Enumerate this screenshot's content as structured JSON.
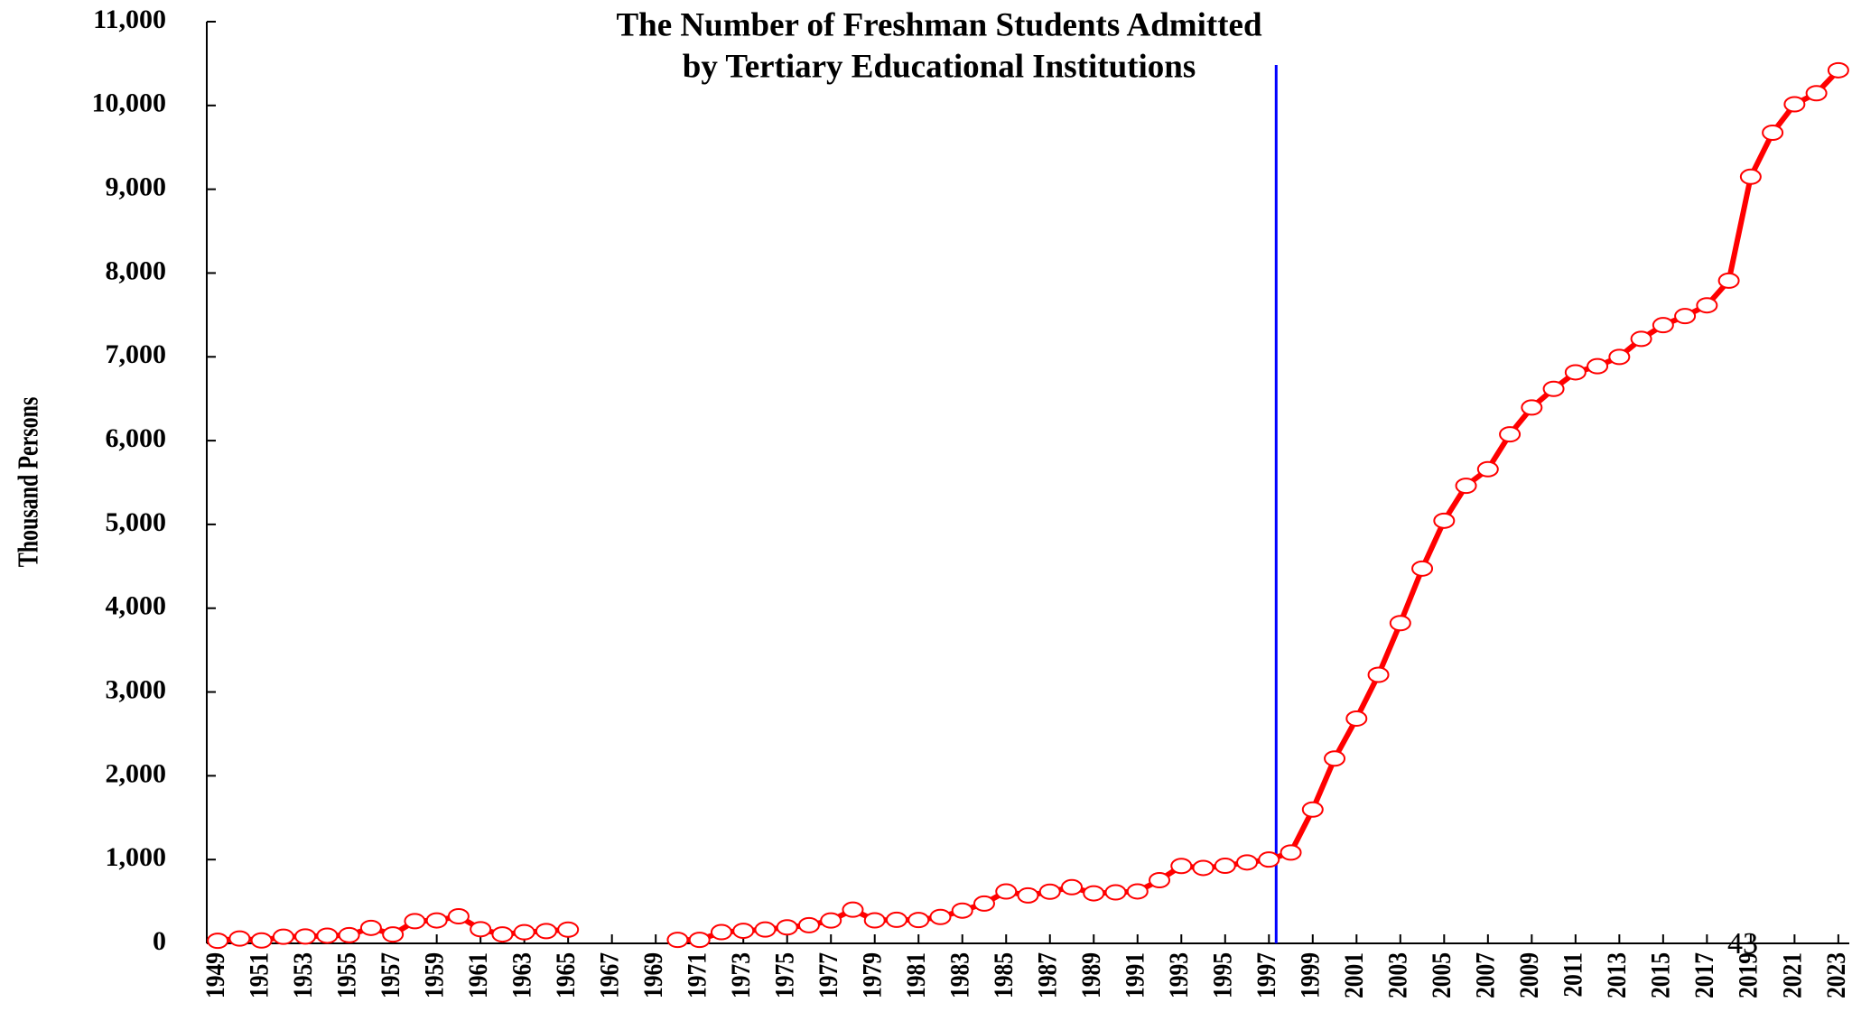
{
  "chart_data": {
    "type": "line",
    "title": [
      "The Number of Freshman Students Admitted",
      "by Tertiary Educational Institutions"
    ],
    "y_label": "Thousand Persons",
    "page_number": "43",
    "x": [
      1949,
      1950,
      1951,
      1952,
      1953,
      1954,
      1955,
      1956,
      1957,
      1958,
      1959,
      1960,
      1961,
      1962,
      1963,
      1964,
      1965,
      1966,
      1967,
      1968,
      1969,
      1970,
      1971,
      1972,
      1973,
      1974,
      1975,
      1976,
      1977,
      1978,
      1979,
      1980,
      1981,
      1982,
      1983,
      1984,
      1985,
      1986,
      1987,
      1988,
      1989,
      1990,
      1991,
      1992,
      1993,
      1994,
      1995,
      1996,
      1997,
      1998,
      1999,
      2000,
      2001,
      2002,
      2003,
      2004,
      2005,
      2006,
      2007,
      2008,
      2009,
      2010,
      2011,
      2012,
      2013,
      2014,
      2015,
      2016,
      2017,
      2018,
      2019,
      2020,
      2021,
      2022,
      2023
    ],
    "series": [
      {
        "name": "Freshman students",
        "color": "#ff0000",
        "values": [
          31,
          58,
          35,
          79,
          82,
          92,
          98,
          185,
          106,
          265,
          274,
          323,
          169,
          107,
          133,
          147,
          164,
          null,
          null,
          null,
          null,
          42,
          42,
          134,
          150,
          165,
          191,
          217,
          273,
          402,
          275,
          281,
          279,
          315,
          391,
          475,
          619,
          572,
          617,
          670,
          597,
          609,
          620,
          754,
          924,
          900,
          926,
          966,
          1000,
          1084,
          1597,
          2206,
          2683,
          3205,
          3822,
          4473,
          5044,
          5461,
          5659,
          6075,
          6395,
          6618,
          6815,
          6888,
          6999,
          7214,
          7378,
          7486,
          7615,
          7909,
          9149,
          9675,
          10014,
          10146,
          10420
        ]
      }
    ],
    "reference_line": {
      "x": 1997,
      "color": "#0000ff"
    },
    "xlim": [
      1948.5,
      2023.5
    ],
    "xticks": [
      1949,
      1951,
      1953,
      1955,
      1957,
      1959,
      1961,
      1963,
      1965,
      1967,
      1969,
      1971,
      1973,
      1975,
      1977,
      1979,
      1981,
      1983,
      1985,
      1987,
      1989,
      1991,
      1993,
      1995,
      1997,
      1999,
      2001,
      2003,
      2005,
      2007,
      2009,
      2011,
      2013,
      2015,
      2017,
      2019,
      2021,
      2023
    ],
    "ylim": [
      0,
      11000
    ],
    "yticks": [
      0,
      {
        "value": 1000,
        "label": "1,000"
      },
      {
        "value": 2000,
        "label": "2,000"
      },
      {
        "value": 3000,
        "label": "3,000"
      },
      {
        "value": 4000,
        "label": "4,000"
      },
      {
        "value": 5000,
        "label": "5,000"
      },
      {
        "value": 6000,
        "label": "6,000"
      },
      {
        "value": 7000,
        "label": "7,000"
      },
      {
        "value": 8000,
        "label": "8,000"
      },
      {
        "value": 9000,
        "label": "9,000"
      },
      {
        "value": 10000,
        "label": "10,000"
      },
      {
        "value": 11000,
        "label": "11,000"
      }
    ],
    "grid": false
  }
}
